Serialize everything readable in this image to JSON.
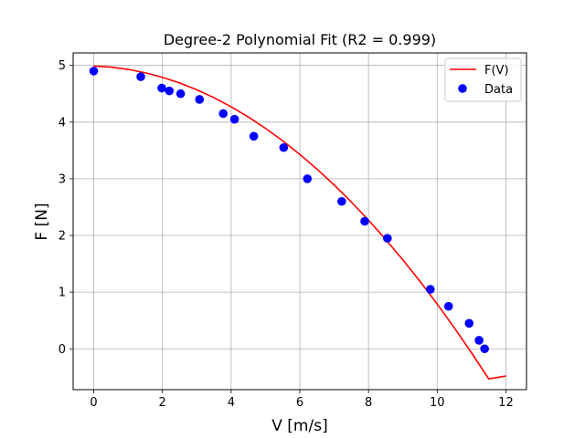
{
  "chart_data": {
    "type": "scatter",
    "title": "Degree-2 Polynomial Fit (R2 = 0.999)",
    "xlabel": "V [m/s]",
    "ylabel": "F [N]",
    "xlim": [
      -0.6,
      12.6
    ],
    "ylim": [
      -0.72,
      5.22
    ],
    "xticks": [
      0,
      2,
      4,
      6,
      8,
      10,
      12
    ],
    "yticks": [
      0,
      1,
      2,
      3,
      4,
      5
    ],
    "xtick_labels": [
      "0",
      "2",
      "4",
      "6",
      "8",
      "10",
      "12"
    ],
    "ytick_labels": [
      "0",
      "1",
      "2",
      "3",
      "4",
      "5"
    ],
    "grid": true,
    "legend_position": "top-right",
    "series": [
      {
        "name": "F(V)",
        "kind": "line",
        "color": "#ff0000",
        "x": [
          0,
          0.5,
          1,
          1.5,
          2,
          2.5,
          3,
          3.5,
          4,
          4.5,
          5,
          5.5,
          6,
          6.5,
          7,
          7.5,
          8,
          8.5,
          9,
          9.5,
          10,
          10.5,
          11,
          11.5,
          12
        ],
        "y": [
          4.99,
          4.97,
          4.93,
          4.87,
          4.79,
          4.69,
          4.57,
          4.43,
          4.27,
          4.09,
          3.89,
          3.67,
          3.43,
          3.17,
          2.89,
          2.59,
          2.27,
          1.93,
          1.57,
          1.19,
          0.79,
          0.37,
          -0.07,
          -0.53,
          -0.48
        ]
      },
      {
        "name": "Data",
        "kind": "scatter",
        "color": "#0000ff",
        "x": [
          0,
          1.37,
          1.98,
          2.2,
          2.53,
          3.08,
          3.77,
          4.1,
          4.66,
          5.53,
          6.22,
          7.22,
          7.89,
          8.55,
          9.8,
          10.33,
          10.93,
          11.22,
          11.38
        ],
        "y": [
          4.9,
          4.8,
          4.6,
          4.55,
          4.5,
          4.4,
          4.15,
          4.05,
          3.75,
          3.55,
          3.0,
          2.6,
          2.25,
          1.95,
          1.05,
          0.75,
          0.45,
          0.15,
          0.0
        ]
      }
    ]
  }
}
